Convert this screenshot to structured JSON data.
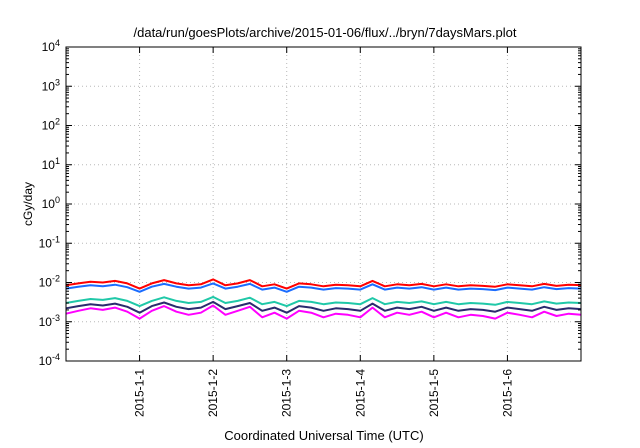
{
  "chart_data": {
    "type": "line",
    "title": "/data/run/goesPlots/archive/2015-01-06/flux/../bryn/7daysMars.plot",
    "xlabel": "Coordinated Universal Time (UTC)",
    "ylabel": "cGy/day",
    "yscale": "log",
    "ylim": [
      0.0001,
      10000
    ],
    "xlim": [
      "2014-12-31T00:00",
      "2015-01-07T00:00"
    ],
    "grid": true,
    "legend": "none",
    "y_ticks": [
      {
        "base": "10",
        "exp": "-4",
        "value": 0.0001
      },
      {
        "base": "10",
        "exp": "-3",
        "value": 0.001
      },
      {
        "base": "10",
        "exp": "-2",
        "value": 0.01
      },
      {
        "base": "10",
        "exp": "-1",
        "value": 0.1
      },
      {
        "base": "10",
        "exp": "0",
        "value": 1
      },
      {
        "base": "10",
        "exp": "1",
        "value": 10
      },
      {
        "base": "10",
        "exp": "2",
        "value": 100
      },
      {
        "base": "10",
        "exp": "3",
        "value": 1000
      },
      {
        "base": "10",
        "exp": "4",
        "value": 10000
      }
    ],
    "x_ticks": [
      {
        "label": "2015-1-1",
        "date": "2015-01-01T00:00"
      },
      {
        "label": "2015-1-2",
        "date": "2015-01-02T00:00"
      },
      {
        "label": "2015-1-3",
        "date": "2015-01-03T00:00"
      },
      {
        "label": "2015-1-4",
        "date": "2015-01-04T00:00"
      },
      {
        "label": "2015-1-5",
        "date": "2015-01-05T00:00"
      },
      {
        "label": "2015-1-6",
        "date": "2015-01-06T00:00"
      }
    ],
    "x": [
      "2014-12-31T00:00",
      "2014-12-31T04:00",
      "2014-12-31T08:00",
      "2014-12-31T12:00",
      "2014-12-31T16:00",
      "2014-12-31T20:00",
      "2015-01-01T00:00",
      "2015-01-01T04:00",
      "2015-01-01T08:00",
      "2015-01-01T12:00",
      "2015-01-01T16:00",
      "2015-01-01T20:00",
      "2015-01-02T00:00",
      "2015-01-02T04:00",
      "2015-01-02T08:00",
      "2015-01-02T12:00",
      "2015-01-02T16:00",
      "2015-01-02T20:00",
      "2015-01-03T00:00",
      "2015-01-03T04:00",
      "2015-01-03T08:00",
      "2015-01-03T12:00",
      "2015-01-03T16:00",
      "2015-01-03T20:00",
      "2015-01-04T00:00",
      "2015-01-04T04:00",
      "2015-01-04T08:00",
      "2015-01-04T12:00",
      "2015-01-04T16:00",
      "2015-01-04T20:00",
      "2015-01-05T00:00",
      "2015-01-05T04:00",
      "2015-01-05T08:00",
      "2015-01-05T12:00",
      "2015-01-05T16:00",
      "2015-01-05T20:00",
      "2015-01-06T00:00",
      "2015-01-06T04:00",
      "2015-01-06T08:00",
      "2015-01-06T12:00",
      "2015-01-06T16:00",
      "2015-01-06T20:00",
      "2015-01-07T00:00"
    ],
    "series": [
      {
        "color": "#ff0000",
        "values": [
          0.0085,
          0.0095,
          0.0105,
          0.01,
          0.011,
          0.0095,
          0.007,
          0.0095,
          0.0115,
          0.0095,
          0.0085,
          0.009,
          0.012,
          0.0085,
          0.0095,
          0.0115,
          0.008,
          0.009,
          0.007,
          0.0095,
          0.009,
          0.008,
          0.0088,
          0.0085,
          0.008,
          0.011,
          0.008,
          0.009,
          0.0085,
          0.0092,
          0.008,
          0.009,
          0.008,
          0.0085,
          0.0082,
          0.0078,
          0.009,
          0.0085,
          0.008,
          0.0092,
          0.0082,
          0.0088,
          0.0086
        ]
      },
      {
        "color": "#1a6cff",
        "values": [
          0.007,
          0.0078,
          0.0085,
          0.008,
          0.0088,
          0.0076,
          0.0058,
          0.0078,
          0.0092,
          0.0078,
          0.007,
          0.0074,
          0.0095,
          0.007,
          0.0078,
          0.0092,
          0.0066,
          0.0074,
          0.0058,
          0.0078,
          0.0074,
          0.0066,
          0.0072,
          0.007,
          0.0066,
          0.009,
          0.0066,
          0.0074,
          0.007,
          0.0076,
          0.0066,
          0.0074,
          0.0066,
          0.007,
          0.0068,
          0.0064,
          0.0074,
          0.007,
          0.0066,
          0.0076,
          0.0068,
          0.0072,
          0.007
        ]
      },
      {
        "color": "#20c8a8",
        "values": [
          0.003,
          0.0034,
          0.0038,
          0.0036,
          0.004,
          0.0034,
          0.0025,
          0.0034,
          0.0042,
          0.0034,
          0.003,
          0.0032,
          0.0043,
          0.003,
          0.0034,
          0.0041,
          0.0028,
          0.0032,
          0.0025,
          0.0034,
          0.0032,
          0.0028,
          0.0031,
          0.003,
          0.0028,
          0.004,
          0.0028,
          0.0032,
          0.003,
          0.0033,
          0.0028,
          0.0032,
          0.0028,
          0.003,
          0.0029,
          0.0027,
          0.0032,
          0.003,
          0.0028,
          0.0033,
          0.0029,
          0.0031,
          0.003
        ]
      },
      {
        "color": "#2a2a6e",
        "values": [
          0.0022,
          0.0025,
          0.0028,
          0.0026,
          0.0029,
          0.0024,
          0.0017,
          0.0025,
          0.0031,
          0.0024,
          0.0021,
          0.0023,
          0.0032,
          0.0021,
          0.0025,
          0.003,
          0.0019,
          0.0023,
          0.0017,
          0.0025,
          0.0023,
          0.0019,
          0.0022,
          0.0021,
          0.0019,
          0.0029,
          0.0019,
          0.0023,
          0.0021,
          0.0024,
          0.0019,
          0.0023,
          0.0019,
          0.0021,
          0.002,
          0.0018,
          0.0023,
          0.0021,
          0.0019,
          0.0024,
          0.002,
          0.0022,
          0.0021
        ]
      },
      {
        "color": "#ff00ff",
        "values": [
          0.0016,
          0.0019,
          0.0022,
          0.002,
          0.0023,
          0.0018,
          0.0012,
          0.0019,
          0.0025,
          0.0018,
          0.0015,
          0.0017,
          0.0026,
          0.0015,
          0.0019,
          0.0024,
          0.0013,
          0.0017,
          0.0012,
          0.0019,
          0.0017,
          0.0013,
          0.0016,
          0.0015,
          0.0013,
          0.0023,
          0.0013,
          0.0017,
          0.0015,
          0.0018,
          0.0013,
          0.0017,
          0.0013,
          0.0015,
          0.0014,
          0.0012,
          0.0017,
          0.0015,
          0.0013,
          0.0018,
          0.0014,
          0.0016,
          0.0015
        ]
      }
    ]
  }
}
